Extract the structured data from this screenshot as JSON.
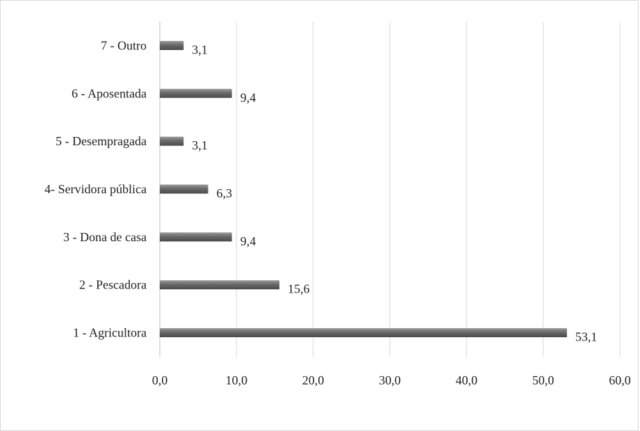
{
  "chart_data": {
    "type": "bar",
    "orientation": "horizontal",
    "title": "",
    "xlabel": "%",
    "ylabel": "",
    "categories": [
      "1 - Agricultora",
      "2 - Pescadora",
      "3 - Dona de casa",
      "4- Servidora pública",
      "5 - Desempragada",
      "6 - Aposentada",
      "7 - Outro"
    ],
    "values": [
      53.1,
      15.6,
      9.4,
      6.3,
      3.1,
      9.4,
      3.1
    ],
    "value_labels": [
      "53,1",
      "15,6",
      "9,4",
      "6,3",
      "3,1",
      "9,4",
      "3,1"
    ],
    "xlim": [
      0,
      60
    ],
    "x_ticks": [
      0,
      10,
      20,
      30,
      40,
      50,
      60
    ],
    "x_tick_labels": [
      "0,0",
      "10,0",
      "20,0",
      "30,0",
      "40,0",
      "50,0",
      "60,0"
    ],
    "grid": "vertical",
    "legend": "none",
    "bar_color": "#6f6f6f",
    "grid_color": "#d9d9d9"
  }
}
